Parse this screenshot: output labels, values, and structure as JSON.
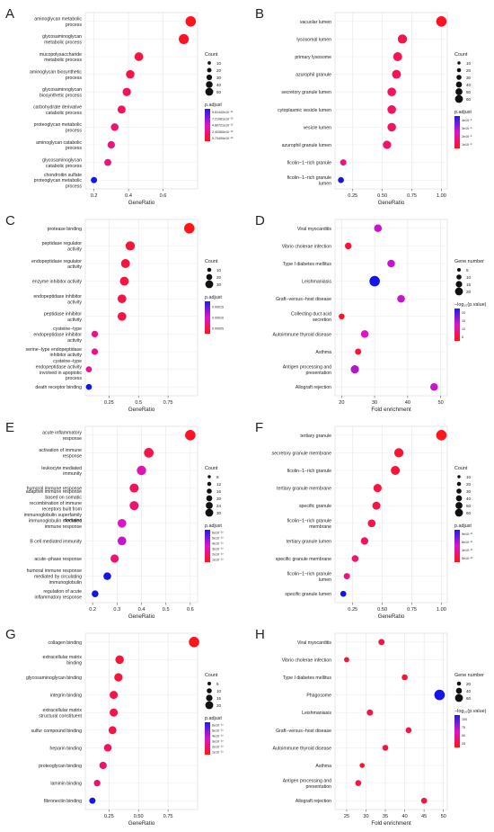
{
  "panels": [
    {
      "letter": "A",
      "chart_data": {
        "type": "scatter",
        "xlabel": "GeneRatio",
        "xlim": [
          0.15,
          0.8
        ],
        "xticks": [
          0.2,
          0.4,
          0.6
        ],
        "categories": [
          "aminoglycan metabolic process",
          "glycosaminoglycan metabolic process",
          "mucopolysaccharide metabolic process",
          "aminoglycan biosynthetic process",
          "glycosaminoglycan biosynthetic process",
          "carbohydrate derivative catabolic process",
          "proteoglycan metabolic process",
          "aminoglycan catabolic process",
          "glycosaminoglycan catabolic process",
          "chondroitin sulfate proteoglycan metabolic process"
        ],
        "x": [
          0.76,
          0.72,
          0.46,
          0.41,
          0.39,
          0.36,
          0.32,
          0.3,
          0.28,
          0.2
        ],
        "size": [
          50,
          45,
          30,
          28,
          26,
          24,
          20,
          18,
          15,
          10
        ],
        "color": [
          0.02,
          0.05,
          0.12,
          0.15,
          0.18,
          0.2,
          0.25,
          0.28,
          0.3,
          1.0
        ],
        "size_legend": {
          "title": "Count",
          "values": [
            "10",
            "20",
            "30",
            "40",
            "50"
          ]
        },
        "color_legend": {
          "title": "p.adjust",
          "labels": [
            "9.61442e10⁻¹³",
            "7.21081e10⁻¹³",
            "4.80721e10⁻¹³",
            "2.40360e10⁻¹³",
            "9.73400e10⁻¹⁶"
          ]
        }
      }
    },
    {
      "letter": "B",
      "chart_data": {
        "type": "scatter",
        "xlabel": "GeneRatio",
        "xlim": [
          0.1,
          1.05
        ],
        "xticks": [
          0.25,
          0.5,
          0.75,
          1.0
        ],
        "tick_labels": [
          "0.25",
          "0.50",
          "0.75",
          "1.00"
        ],
        "categories": [
          "vacuolar lumen",
          "lysosomal lumen",
          "primary lysosome",
          "azurophil granule",
          "secretory granule lumen",
          "cytoplasmic vesicle lumen",
          "vesicle lumen",
          "azurophil granule lumen",
          "ficolin−1−rich granule",
          "ficolin−1−rich granule lumen"
        ],
        "x": [
          1.0,
          0.67,
          0.63,
          0.62,
          0.58,
          0.58,
          0.58,
          0.54,
          0.17,
          0.15
        ],
        "size": [
          60,
          42,
          38,
          38,
          35,
          35,
          35,
          32,
          12,
          10
        ],
        "color": [
          0.05,
          0.15,
          0.18,
          0.18,
          0.2,
          0.22,
          0.22,
          0.25,
          0.3,
          1.0
        ],
        "size_legend": {
          "title": "Count",
          "values": [
            "10",
            "20",
            "30",
            "40",
            "50",
            "60"
          ]
        },
        "color_legend": {
          "title": "p.adjust",
          "labels": [
            "4e10⁻⁸",
            "3e10⁻⁸",
            "2e10⁻⁸",
            "1e10⁻⁸"
          ]
        }
      }
    },
    {
      "letter": "C",
      "chart_data": {
        "type": "scatter",
        "xlabel": "GeneRatio",
        "xlim": [
          0.05,
          1.0
        ],
        "xticks": [
          0.25,
          0.5,
          0.75
        ],
        "categories": [
          "protease binding",
          "peptidase regulator activity",
          "endopeptidase regulator activity",
          "enzyme inhibitor activity",
          "endopeptidase inhibitor activity",
          "peptidase inhibitor activity",
          "cysteine−type endopeptidase inhibitor activity",
          "serine−type endopeptidase inhibitor activity",
          "cysteine−type endopeptidase activity involved in apoptotic process",
          "death receptor binding"
        ],
        "x": [
          0.93,
          0.43,
          0.39,
          0.38,
          0.36,
          0.36,
          0.13,
          0.13,
          0.08,
          0.08
        ],
        "size": [
          35,
          25,
          23,
          22,
          21,
          21,
          8,
          8,
          6,
          6
        ],
        "color": [
          0.02,
          0.1,
          0.12,
          0.13,
          0.14,
          0.14,
          0.3,
          0.3,
          0.35,
          1.0
        ],
        "size_legend": {
          "title": "Count",
          "values": [
            "10",
            "20",
            "30"
          ]
        },
        "color_legend": {
          "title": "p.adjust",
          "labels": [
            "0.00015",
            "0.00010",
            "0.00005"
          ]
        }
      }
    },
    {
      "letter": "D",
      "chart_data": {
        "type": "scatter",
        "xlabel": "Fold enrichment",
        "xlim": [
          18,
          52
        ],
        "xticks": [
          20,
          30,
          40,
          50
        ],
        "categories": [
          "Viral myocarditis",
          "Vibrio cholerae infection",
          "Type I diabetes mellitus",
          "Leishmaniasis",
          "Graft−versus−host disease",
          "Collecting duct acid secretion",
          "Autoimmune thyroid disease",
          "Asthma",
          "Antigen processing and presentation",
          "Allograft rejection"
        ],
        "x": [
          31,
          22,
          35,
          30,
          38,
          20,
          27,
          25,
          24,
          48
        ],
        "size": [
          8,
          5,
          8,
          20,
          8,
          3,
          8,
          4,
          10,
          8
        ],
        "color": [
          0.55,
          0.1,
          0.55,
          1.0,
          0.55,
          0.05,
          0.5,
          0.1,
          0.6,
          0.55
        ],
        "size_legend": {
          "title": "Gene number",
          "values": [
            "5",
            "10",
            "15",
            "20"
          ]
        },
        "color_legend": {
          "title": "−log₁₀(p.value)",
          "labels": [
            "20",
            "15",
            "10",
            "5"
          ]
        }
      }
    },
    {
      "letter": "E",
      "chart_data": {
        "type": "scatter",
        "xlabel": "GeneRatio",
        "xlim": [
          0.17,
          0.63
        ],
        "xticks": [
          0.2,
          0.3,
          0.4,
          0.5,
          0.6
        ],
        "categories": [
          "acute inflammatory response",
          "activation of immune response",
          "leukocyte mediated immunity",
          "humoral immune response",
          "adaptive immune response based on somatic recombination of immune receptors built from immunoglobulin superfamily domains",
          "immunoglobulin mediated immune response",
          "B cell mediated immunity",
          "acute−phase response",
          "humoral immune response mediated by circulating immunoglobulin",
          "regulation of acute inflammatory response"
        ],
        "x": [
          0.6,
          0.43,
          0.4,
          0.37,
          0.37,
          0.32,
          0.32,
          0.29,
          0.26,
          0.21
        ],
        "size": [
          30,
          24,
          22,
          20,
          20,
          18,
          18,
          15,
          12,
          8
        ],
        "color": [
          0.05,
          0.15,
          0.45,
          0.2,
          0.25,
          0.5,
          0.55,
          0.25,
          1.0,
          1.0
        ],
        "size_legend": {
          "title": "Count",
          "values": [
            "8",
            "12",
            "16",
            "20",
            "24",
            "30"
          ]
        },
        "color_legend": {
          "title": "p.adjust",
          "labels": [
            "6e10⁻¹⁰",
            "5e10⁻¹⁰",
            "4e10⁻¹⁰",
            "3e10⁻¹⁰",
            "2e10⁻¹⁰",
            "1e10⁻¹⁰"
          ]
        }
      }
    },
    {
      "letter": "F",
      "chart_data": {
        "type": "scatter",
        "xlabel": "GeneRatio",
        "xlim": [
          0.1,
          1.05
        ],
        "xticks": [
          0.25,
          0.5,
          0.75,
          1.0
        ],
        "tick_labels": [
          "0.25",
          "0.50",
          "0.75",
          "1.00"
        ],
        "categories": [
          "tertiary granule",
          "secretory granule membrane",
          "ficolin−1−rich granule",
          "tertiary granule membrane",
          "specific granule",
          "ficolin−1−rich granule membrane",
          "tertiary granule lumen",
          "specific granule membrane",
          "ficolin−1−rich granule lumen",
          "specific granule lumen"
        ],
        "x": [
          1.0,
          0.64,
          0.61,
          0.46,
          0.45,
          0.41,
          0.35,
          0.27,
          0.2,
          0.17
        ],
        "size": [
          60,
          42,
          40,
          30,
          28,
          26,
          22,
          16,
          12,
          10
        ],
        "color": [
          0.02,
          0.08,
          0.1,
          0.12,
          0.14,
          0.16,
          0.2,
          0.25,
          0.3,
          1.0
        ],
        "size_legend": {
          "title": "Count",
          "values": [
            "10",
            "20",
            "30",
            "40",
            "50",
            "60"
          ]
        },
        "color_legend": {
          "title": "p.adjust",
          "labels": [
            "9e10⁻¹¹",
            "6e10⁻¹¹",
            "3e10⁻¹¹",
            "5e10⁻¹²"
          ]
        }
      }
    },
    {
      "letter": "G",
      "chart_data": {
        "type": "scatter",
        "xlabel": "GeneRatio",
        "xlim": [
          0.05,
          1.0
        ],
        "xticks": [
          0.25,
          0.5,
          0.75
        ],
        "tick_labels": [
          "0.25",
          "0.50",
          "0.75"
        ],
        "categories": [
          "collagen binding",
          "extracellular matrix binding",
          "glycosaminoglycan binding",
          "integrin binding",
          "extracellular matrix structural constituent",
          "sulfur compound binding",
          "heparin binding",
          "proteoglycan binding",
          "laminin binding",
          "fibronectin binding"
        ],
        "x": [
          0.97,
          0.34,
          0.33,
          0.29,
          0.29,
          0.28,
          0.24,
          0.2,
          0.15,
          0.11
        ],
        "size": [
          25,
          14,
          13,
          12,
          12,
          11,
          10,
          9,
          6,
          5
        ],
        "color": [
          0.02,
          0.1,
          0.1,
          0.15,
          0.15,
          0.15,
          0.2,
          0.25,
          0.25,
          1.0
        ],
        "size_legend": {
          "title": "Count",
          "values": [
            "5",
            "10",
            "15",
            "20"
          ]
        },
        "color_legend": {
          "title": "p.adjust",
          "labels": [
            "6e10⁻¹⁰",
            "5e10⁻¹⁰",
            "4e10⁻¹⁰",
            "3e10⁻¹⁰",
            "2e10⁻¹⁰",
            "1e10⁻¹⁰"
          ]
        }
      }
    },
    {
      "letter": "H",
      "chart_data": {
        "type": "scatter",
        "xlabel": "Fold enrichment",
        "xlim": [
          22,
          51
        ],
        "xticks": [
          25,
          30,
          35,
          40,
          45,
          50
        ],
        "categories": [
          "Viral myocarditis",
          "Vibrio cholerae infection",
          "Type I diabetes mellitus",
          "Phagosome",
          "Leishmaniasis",
          "Graft−versus−host disease",
          "Autoimmune thyroid disease",
          "Asthma",
          "Antigen processing and presentation",
          "Allograft rejection"
        ],
        "x": [
          34,
          25,
          40,
          49,
          31,
          41,
          35,
          29,
          28,
          45
        ],
        "size": [
          12,
          6,
          10,
          60,
          12,
          10,
          10,
          5,
          10,
          10
        ],
        "color": [
          0.15,
          0.1,
          0.12,
          1.0,
          0.12,
          0.12,
          0.12,
          0.05,
          0.12,
          0.12
        ],
        "size_legend": {
          "title": "Gene number",
          "values": [
            "20",
            "40",
            "60"
          ]
        },
        "color_legend": {
          "title": "−log₁₀(p.value)",
          "labels": [
            "100",
            "75",
            "50",
            "25"
          ]
        }
      }
    }
  ]
}
